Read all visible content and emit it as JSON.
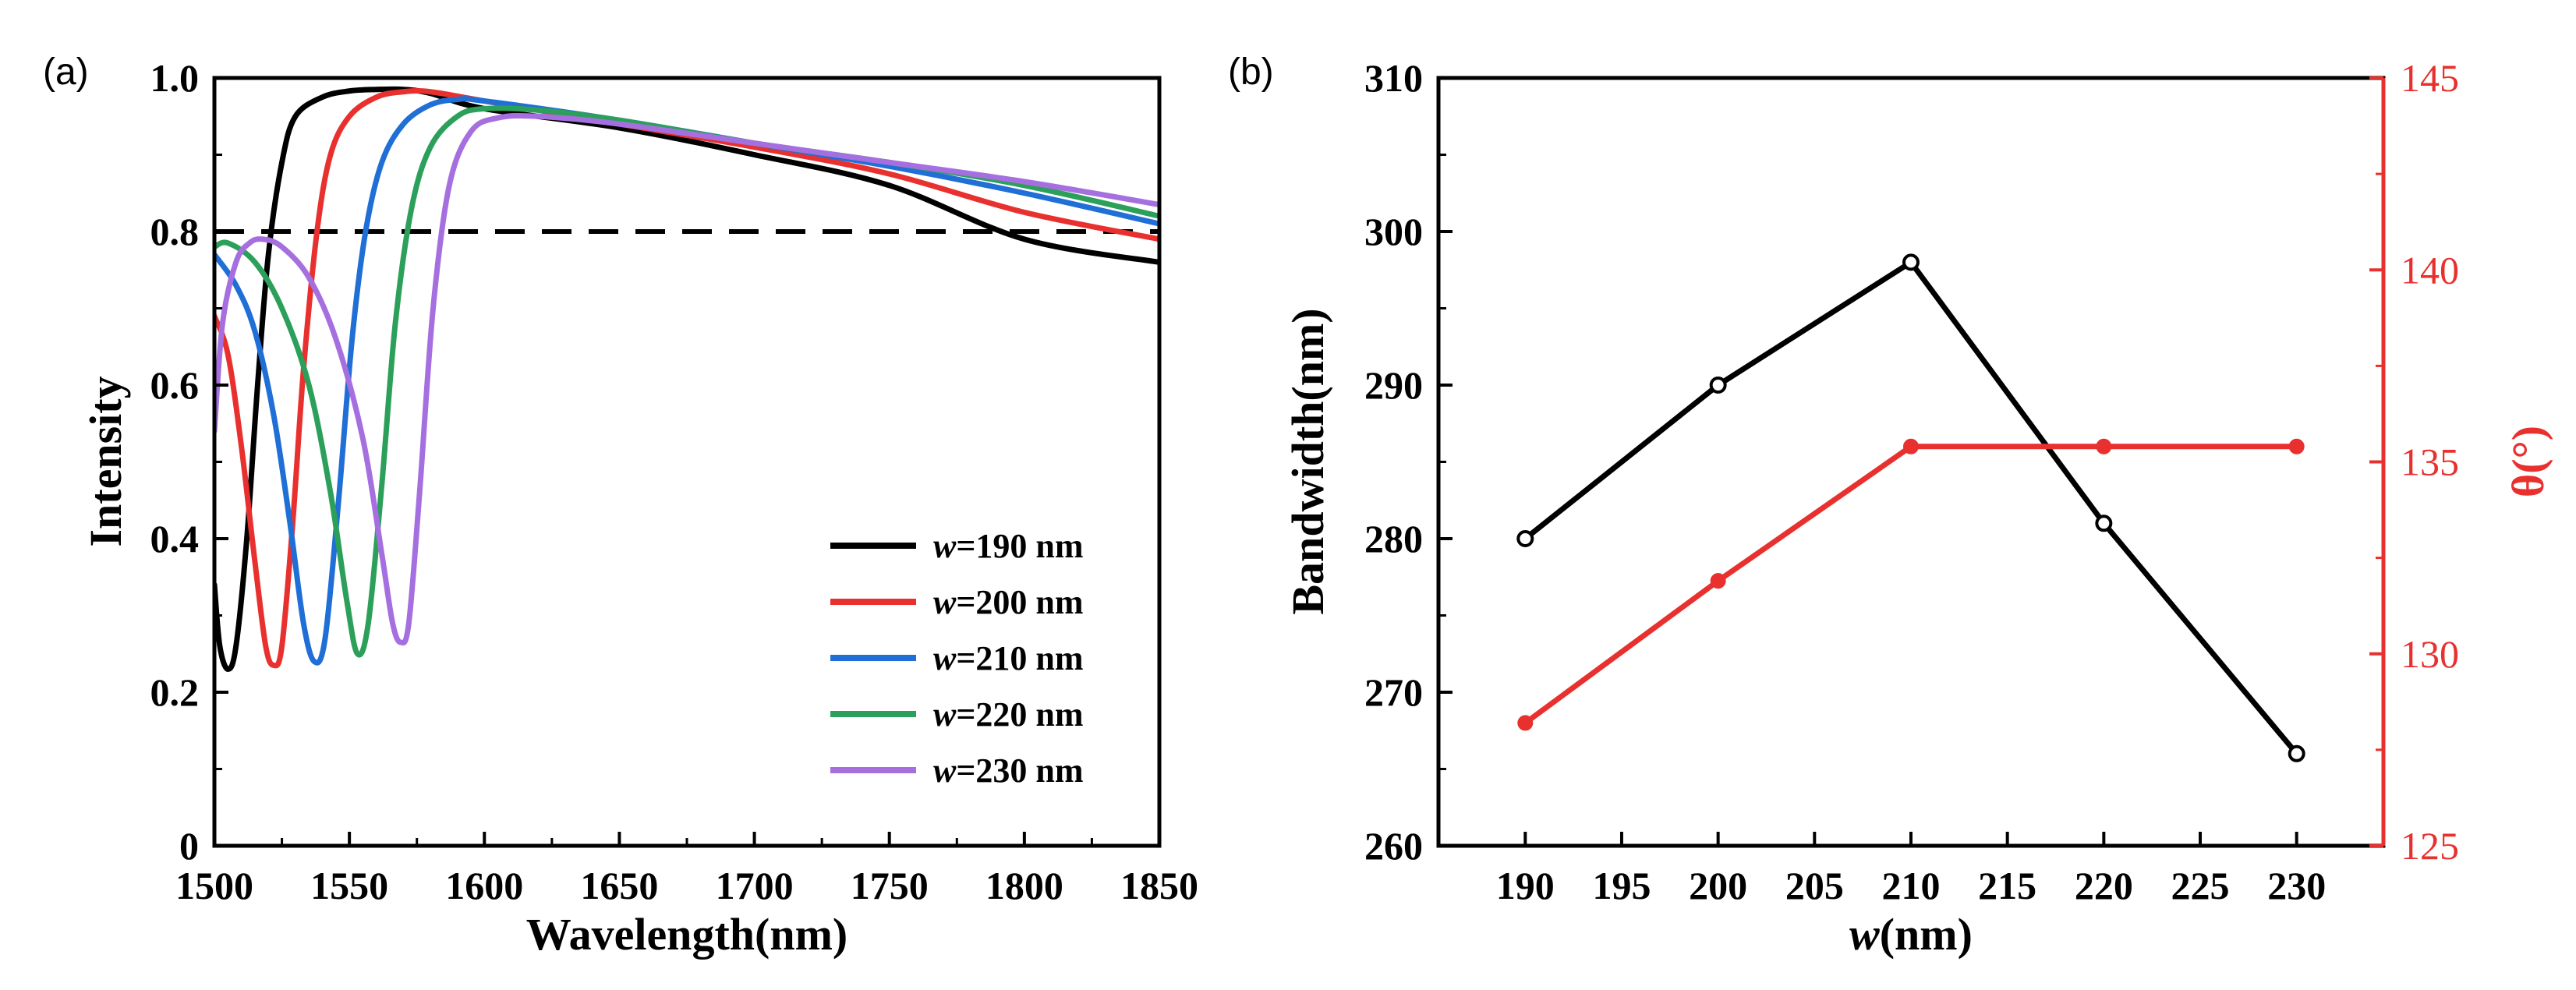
{
  "chart_data": [
    {
      "panel_label": "(a)",
      "type": "line",
      "xlabel": "Wavelength(nm)",
      "ylabel": "Intensity",
      "xlim": [
        1500,
        1850
      ],
      "ylim": [
        0,
        1.0
      ],
      "xticks": [
        "1500",
        "1550",
        "1600",
        "1650",
        "1700",
        "1750",
        "1800",
        "1850"
      ],
      "yticks": [
        "0",
        "0.2",
        "0.4",
        "0.6",
        "0.8",
        "1.0"
      ],
      "reference_line": {
        "y": 0.8,
        "style": "dashed",
        "color": "#000000"
      },
      "legend_position": "bottom-right",
      "series": [
        {
          "name": "w=190 nm",
          "prefix": "w",
          "suffix": "=190 nm",
          "color": "#000000",
          "x": [
            1500,
            1502,
            1505,
            1508,
            1512,
            1516,
            1520,
            1525,
            1530,
            1540,
            1550,
            1560,
            1570,
            1580,
            1600,
            1650,
            1700,
            1750,
            1800,
            1850
          ],
          "y": [
            0.34,
            0.26,
            0.23,
            0.26,
            0.4,
            0.6,
            0.77,
            0.89,
            0.95,
            0.975,
            0.983,
            0.985,
            0.985,
            0.98,
            0.96,
            0.935,
            0.9,
            0.86,
            0.79,
            0.76
          ]
        },
        {
          "name": "w=200 nm",
          "prefix": "w",
          "suffix": "=200 nm",
          "color": "#e8312f",
          "x": [
            1500,
            1505,
            1510,
            1515,
            1519,
            1522,
            1525,
            1529,
            1533,
            1538,
            1543,
            1550,
            1560,
            1570,
            1580,
            1600,
            1650,
            1700,
            1750,
            1800,
            1850
          ],
          "y": [
            0.69,
            0.64,
            0.52,
            0.37,
            0.26,
            0.235,
            0.26,
            0.42,
            0.62,
            0.8,
            0.9,
            0.95,
            0.975,
            0.982,
            0.982,
            0.97,
            0.94,
            0.91,
            0.875,
            0.825,
            0.79
          ]
        },
        {
          "name": "w=210 nm",
          "prefix": "w",
          "suffix": "=210 nm",
          "color": "#1f6fd6",
          "x": [
            1500,
            1508,
            1515,
            1522,
            1528,
            1533,
            1537,
            1541,
            1546,
            1551,
            1556,
            1562,
            1570,
            1580,
            1590,
            1600,
            1650,
            1700,
            1750,
            1800,
            1850
          ],
          "y": [
            0.77,
            0.73,
            0.67,
            0.56,
            0.42,
            0.29,
            0.24,
            0.27,
            0.45,
            0.66,
            0.8,
            0.89,
            0.94,
            0.965,
            0.972,
            0.97,
            0.945,
            0.915,
            0.885,
            0.85,
            0.81
          ]
        },
        {
          "name": "w=220 nm",
          "prefix": "w",
          "suffix": "=220 nm",
          "color": "#2ca05a",
          "x": [
            1500,
            1505,
            1515,
            1525,
            1535,
            1543,
            1549,
            1553,
            1557,
            1562,
            1567,
            1573,
            1580,
            1590,
            1600,
            1620,
            1650,
            1700,
            1750,
            1800,
            1850
          ],
          "y": [
            0.78,
            0.785,
            0.76,
            0.7,
            0.6,
            0.46,
            0.32,
            0.25,
            0.29,
            0.47,
            0.68,
            0.83,
            0.91,
            0.95,
            0.96,
            0.958,
            0.945,
            0.915,
            0.89,
            0.86,
            0.82
          ]
        },
        {
          "name": "w=230 nm",
          "prefix": "w",
          "suffix": "=230 nm",
          "color": "#a66fe0",
          "x": [
            1500,
            1503,
            1508,
            1513,
            1518,
            1525,
            1535,
            1545,
            1555,
            1562,
            1566,
            1569,
            1572,
            1576,
            1581,
            1587,
            1595,
            1605,
            1620,
            1650,
            1700,
            1750,
            1800,
            1850
          ],
          "y": [
            0.54,
            0.68,
            0.76,
            0.785,
            0.79,
            0.78,
            0.74,
            0.66,
            0.53,
            0.38,
            0.29,
            0.265,
            0.29,
            0.46,
            0.7,
            0.86,
            0.93,
            0.948,
            0.95,
            0.94,
            0.915,
            0.89,
            0.865,
            0.835
          ]
        }
      ]
    },
    {
      "panel_label": "(b)",
      "type": "line",
      "xlabel_prefix": "w",
      "xlabel_suffix": "(nm)",
      "ylabel": "Bandwidth(nm)",
      "y2label": "θ(°)",
      "xlim": [
        185.5,
        234.5
      ],
      "ylim": [
        260,
        310
      ],
      "y2lim": [
        125,
        145
      ],
      "xticks": [
        "190",
        "195",
        "200",
        "205",
        "210",
        "215",
        "220",
        "225",
        "230"
      ],
      "yticks": [
        "260",
        "270",
        "280",
        "290",
        "300",
        "310"
      ],
      "y2ticks": [
        "125",
        "130",
        "135",
        "140",
        "145"
      ],
      "series": [
        {
          "name": "Bandwidth",
          "axis": "left",
          "color": "#000000",
          "marker": "circle-open",
          "x": [
            190,
            200,
            210,
            220,
            230
          ],
          "y": [
            280,
            290,
            298,
            281,
            266
          ]
        },
        {
          "name": "θ",
          "axis": "right",
          "color": "#e8312f",
          "marker": "circle-filled",
          "x": [
            190,
            200,
            210,
            220,
            230
          ],
          "y": [
            128.2,
            131.9,
            135.4,
            135.4,
            135.4
          ]
        }
      ]
    }
  ]
}
